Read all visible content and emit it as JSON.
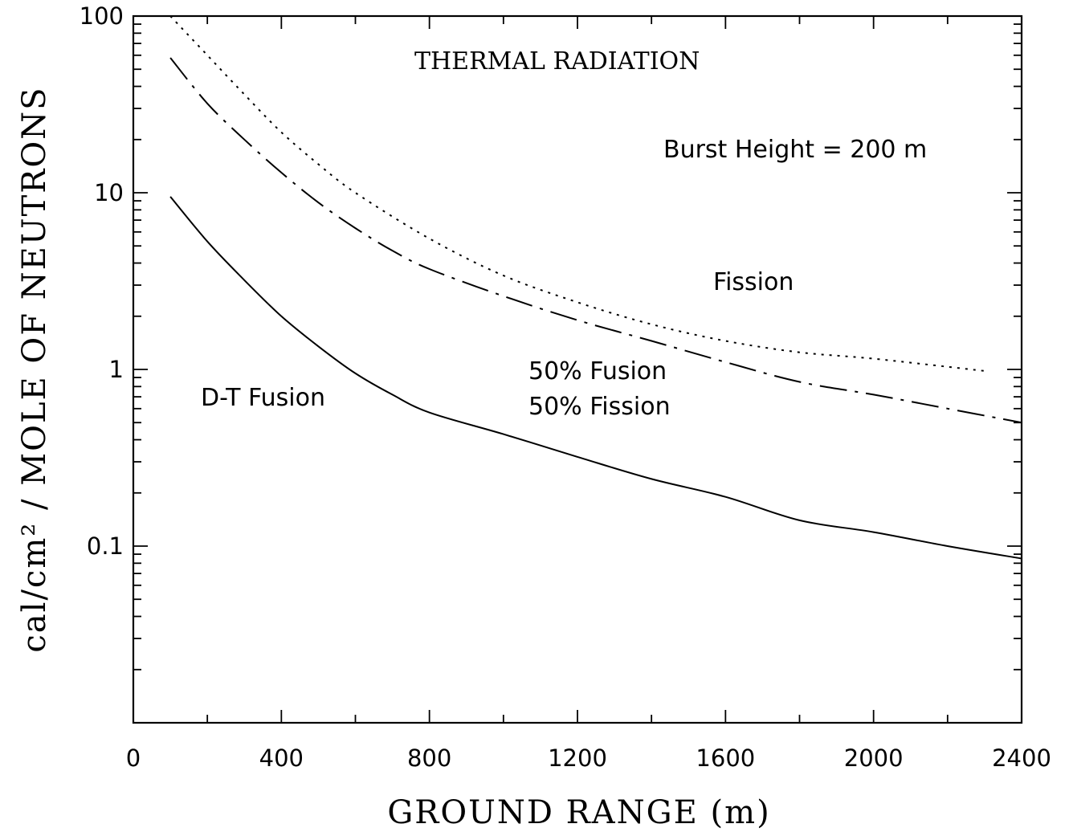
{
  "chart_data": {
    "type": "line",
    "title": "THERMAL RADIATION",
    "subtitle": "Burst Height = 200 m",
    "xlabel": "GROUND RANGE (m)",
    "ylabel": "cal/cm² / MOLE OF NEUTRONS",
    "xlim": [
      0,
      2400
    ],
    "ylim": [
      0.01,
      100
    ],
    "yscale": "log",
    "grid": false,
    "x_ticks": [
      0,
      400,
      800,
      1200,
      1600,
      2000,
      2400
    ],
    "x_tick_labels": [
      "0",
      "400",
      "800",
      "1200",
      "1600",
      "2000",
      "2400"
    ],
    "y_ticks": [
      0.1,
      1,
      10,
      100
    ],
    "y_tick_labels": [
      "0.1",
      "1",
      "10",
      "100"
    ],
    "series": [
      {
        "name": "Fission",
        "line_style": "dotted",
        "points": [
          [
            100,
            100
          ],
          [
            200,
            60
          ],
          [
            300,
            36
          ],
          [
            400,
            22
          ],
          [
            500,
            14.5
          ],
          [
            600,
            10
          ],
          [
            800,
            5.5
          ],
          [
            1000,
            3.4
          ],
          [
            1200,
            2.4
          ],
          [
            1400,
            1.8
          ],
          [
            1600,
            1.45
          ],
          [
            1800,
            1.25
          ],
          [
            2000,
            1.15
          ],
          [
            2300,
            0.98
          ]
        ]
      },
      {
        "name": "50% Fusion 50% Fission",
        "line_style": "dash-dot",
        "points": [
          [
            100,
            58
          ],
          [
            200,
            32
          ],
          [
            300,
            20
          ],
          [
            400,
            13
          ],
          [
            500,
            8.8
          ],
          [
            600,
            6.3
          ],
          [
            700,
            4.7
          ],
          [
            800,
            3.7
          ],
          [
            1000,
            2.6
          ],
          [
            1200,
            1.9
          ],
          [
            1400,
            1.45
          ],
          [
            1600,
            1.1
          ],
          [
            1800,
            0.85
          ],
          [
            2000,
            0.72
          ],
          [
            2200,
            0.6
          ],
          [
            2400,
            0.5
          ]
        ]
      },
      {
        "name": "D-T Fusion",
        "line_style": "solid",
        "points": [
          [
            100,
            9.5
          ],
          [
            200,
            5.3
          ],
          [
            300,
            3.2
          ],
          [
            400,
            2.0
          ],
          [
            500,
            1.35
          ],
          [
            600,
            0.95
          ],
          [
            700,
            0.72
          ],
          [
            800,
            0.57
          ],
          [
            1000,
            0.43
          ],
          [
            1200,
            0.32
          ],
          [
            1400,
            0.24
          ],
          [
            1600,
            0.19
          ],
          [
            1800,
            0.14
          ],
          [
            2000,
            0.12
          ],
          [
            2200,
            0.1
          ],
          [
            2400,
            0.085
          ]
        ]
      }
    ],
    "annotations": [
      {
        "text": "THERMAL RADIATION"
      },
      {
        "text": "Burst Height = 200 m"
      },
      {
        "text": "Fission"
      },
      {
        "text": "50% Fusion"
      },
      {
        "text": "50% Fission"
      },
      {
        "text": "D-T Fusion"
      }
    ]
  }
}
